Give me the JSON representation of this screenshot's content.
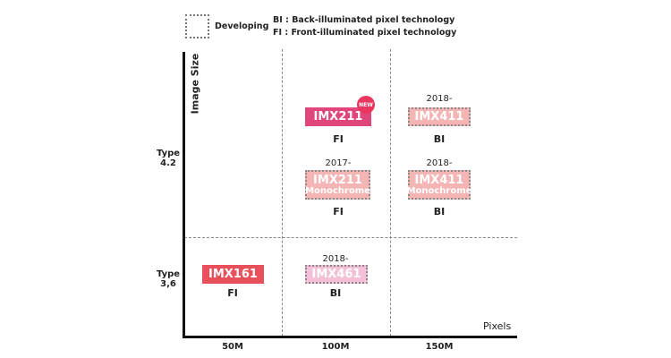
{
  "legend": {
    "developing": "Developing",
    "bi": "BI : Back-illuminated pixel technology",
    "fi": "FI : Front-illuminated pixel technology"
  },
  "axes": {
    "y_title": "Image Size",
    "x_title": "Pixels",
    "y_ticks": [
      [
        "Type",
        "4.2"
      ],
      [
        "Type",
        "3,6"
      ]
    ],
    "x_ticks": [
      "50M",
      "100M",
      "150M"
    ]
  },
  "sensors": [
    {
      "name": "IMX211",
      "sub": "",
      "tech": "FI",
      "year": "",
      "badge": "NEW",
      "color": "#e0457b",
      "developing": false
    },
    {
      "name": "IMX411",
      "sub": "",
      "tech": "BI",
      "year": "2018-",
      "badge": "",
      "color": "#f5b5b5",
      "developing": true
    },
    {
      "name": "IMX211",
      "sub": "Monochrome",
      "tech": "FI",
      "year": "2017-",
      "badge": "",
      "color": "#f5b5b5",
      "developing": true
    },
    {
      "name": "IMX411",
      "sub": "Monochrome",
      "tech": "BI",
      "year": "2018-",
      "badge": "",
      "color": "#f5b5b5",
      "developing": true
    },
    {
      "name": "IMX161",
      "sub": "",
      "tech": "FI",
      "year": "",
      "badge": "",
      "color": "#e8505b",
      "developing": false
    },
    {
      "name": "IMX461",
      "sub": "",
      "tech": "BI",
      "year": "2018-",
      "badge": "",
      "color": "#f4c0d8",
      "developing": true
    }
  ]
}
